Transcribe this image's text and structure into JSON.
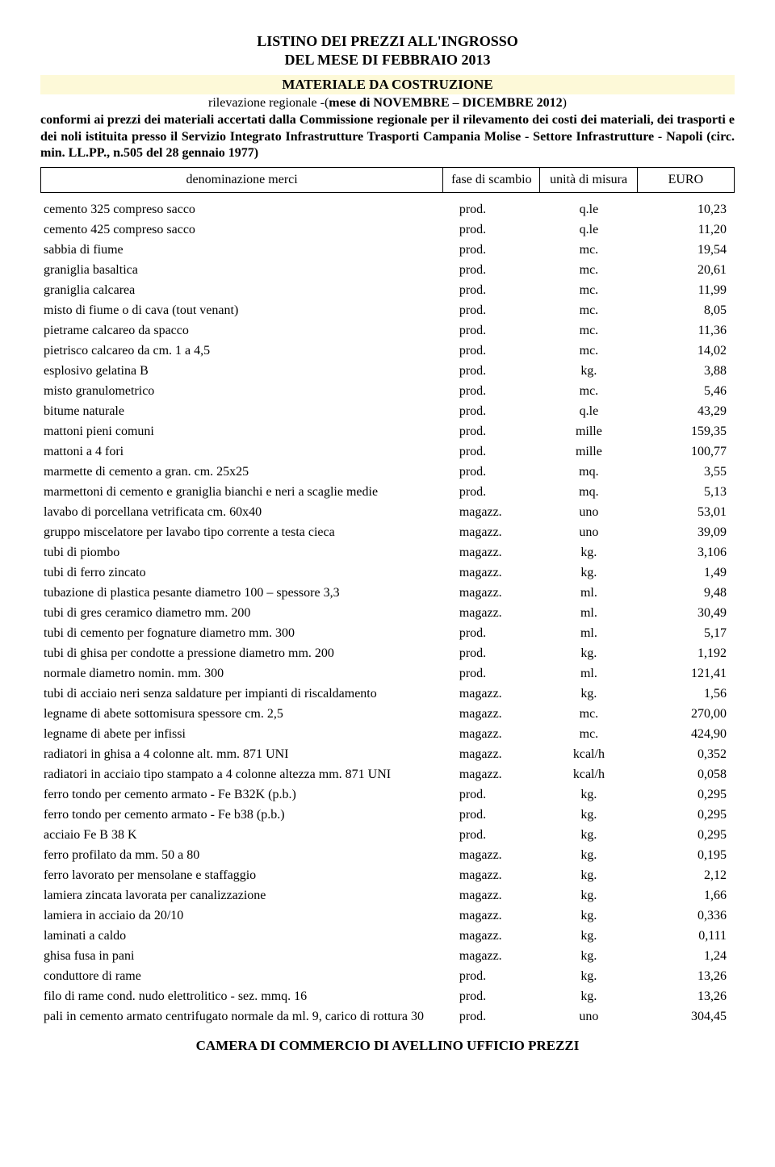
{
  "title_line1": "LISTINO DEI PREZZI ALL'INGROSSO",
  "title_line2": "DEL MESE DI FEBBRAIO 2013",
  "section_header": "MATERIALE DA COSTRUZIONE",
  "subhead_prefix": "rilevazione regionale -(",
  "subhead_bold": "mese di NOVEMBRE – DICEMBRE 2012",
  "subhead_suffix": ")",
  "intro_part1": "conformi ai prezzi dei materiali accertati dalla Commissione regionale per il rilevamento dei costi dei materiali, dei trasporti e dei noli istituita presso il Servizio Integrato Infrastrutture Trasporti Campania Molise - Settore Infrastrutture - Napoli (circ. min. LL.PP., n.505 del 28 gennaio 1977)",
  "columns": {
    "c1": "denominazione merci",
    "c2": "fase di scambio",
    "c3": "unità di misura",
    "c4": "EURO"
  },
  "rows": [
    {
      "desc": "cemento 325 compreso sacco",
      "fase": "prod.",
      "unit": "q.le",
      "price": "10,23"
    },
    {
      "desc": "cemento 425 compreso sacco",
      "fase": "prod.",
      "unit": "q.le",
      "price": "11,20"
    },
    {
      "desc": "sabbia di fiume",
      "fase": "prod.",
      "unit": "mc.",
      "price": "19,54"
    },
    {
      "desc": "graniglia basaltica",
      "fase": "prod.",
      "unit": "mc.",
      "price": "20,61"
    },
    {
      "desc": "graniglia calcarea",
      "fase": "prod.",
      "unit": "mc.",
      "price": "11,99"
    },
    {
      "desc": "misto di fiume o di cava (tout venant)",
      "fase": "prod.",
      "unit": "mc.",
      "price": "8,05"
    },
    {
      "desc": "pietrame calcareo da spacco",
      "fase": "prod.",
      "unit": "mc.",
      "price": "11,36"
    },
    {
      "desc": "pietrisco calcareo da cm. 1 a 4,5",
      "fase": "prod.",
      "unit": "mc.",
      "price": "14,02"
    },
    {
      "desc": "esplosivo gelatina B",
      "fase": "prod.",
      "unit": "kg.",
      "price": "3,88"
    },
    {
      "desc": "misto granulometrico",
      "fase": "prod.",
      "unit": "mc.",
      "price": "5,46"
    },
    {
      "desc": "bitume naturale",
      "fase": "prod.",
      "unit": "q.le",
      "price": "43,29"
    },
    {
      "desc": "mattoni pieni comuni",
      "fase": "prod.",
      "unit": "mille",
      "price": "159,35"
    },
    {
      "desc": "mattoni a 4 fori",
      "fase": "prod.",
      "unit": "mille",
      "price": "100,77"
    },
    {
      "desc": "marmette di cemento a gran. cm. 25x25",
      "fase": "prod.",
      "unit": "mq.",
      "price": "3,55"
    },
    {
      "desc": "marmettoni di cemento e graniglia bianchi e neri a scaglie medie",
      "fase": "prod.",
      "unit": "mq.",
      "price": "5,13"
    },
    {
      "desc": "lavabo di porcellana vetrificata cm. 60x40",
      "fase": "magazz.",
      "unit": "uno",
      "price": "53,01"
    },
    {
      "desc": "gruppo miscelatore per lavabo tipo corrente a testa cieca",
      "fase": "magazz.",
      "unit": "uno",
      "price": "39,09"
    },
    {
      "desc": "tubi di piombo",
      "fase": "magazz.",
      "unit": "kg.",
      "price": "3,106"
    },
    {
      "desc": "tubi di ferro zincato",
      "fase": "magazz.",
      "unit": "kg.",
      "price": "1,49"
    },
    {
      "desc": "tubazione di plastica pesante diametro 100 – spessore 3,3",
      "fase": "magazz.",
      "unit": "ml.",
      "price": "9,48"
    },
    {
      "desc": "tubi di gres ceramico diametro mm. 200",
      "fase": "magazz.",
      "unit": "ml.",
      "price": "30,49"
    },
    {
      "desc": "tubi di cemento per fognature diametro mm. 300",
      "fase": "prod.",
      "unit": "ml.",
      "price": "5,17"
    },
    {
      "desc": "tubi di ghisa per condotte a pressione diametro mm. 200",
      "fase": "prod.",
      "unit": "kg.",
      "price": "1,192"
    },
    {
      "desc": "normale diametro nomin. mm. 300",
      "fase": "prod.",
      "unit": "ml.",
      "price": "121,41"
    },
    {
      "desc": "tubi di acciaio neri senza saldature per impianti di riscaldamento",
      "fase": "magazz.",
      "unit": "kg.",
      "price": "1,56"
    },
    {
      "desc": "legname di abete sottomisura spessore cm. 2,5",
      "fase": "magazz.",
      "unit": "mc.",
      "price": "270,00"
    },
    {
      "desc": "legname di abete per infissi",
      "fase": "magazz.",
      "unit": "mc.",
      "price": "424,90"
    },
    {
      "desc": "radiatori in ghisa a 4 colonne alt. mm. 871 UNI",
      "fase": "magazz.",
      "unit": "kcal/h",
      "price": "0,352"
    },
    {
      "desc": "radiatori in acciaio tipo stampato a 4 colonne altezza mm. 871 UNI",
      "fase": "magazz.",
      "unit": "kcal/h",
      "price": "0,058"
    },
    {
      "desc": "ferro tondo per cemento armato - Fe B32K (p.b.)",
      "fase": "prod.",
      "unit": "kg.",
      "price": "0,295"
    },
    {
      "desc": "ferro tondo per cemento armato - Fe b38 (p.b.)",
      "fase": "prod.",
      "unit": "kg.",
      "price": "0,295"
    },
    {
      "desc": "acciaio Fe B 38 K",
      "fase": "prod.",
      "unit": "kg.",
      "price": "0,295"
    },
    {
      "desc": "ferro profilato da mm. 50 a 80",
      "fase": "magazz.",
      "unit": "kg.",
      "price": "0,195"
    },
    {
      "desc": "ferro lavorato per mensolane e staffaggio",
      "fase": "magazz.",
      "unit": "kg.",
      "price": "2,12"
    },
    {
      "desc": "lamiera zincata lavorata per canalizzazione",
      "fase": "magazz.",
      "unit": "kg.",
      "price": "1,66"
    },
    {
      "desc": "lamiera in acciaio da 20/10",
      "fase": "magazz.",
      "unit": "kg.",
      "price": "0,336"
    },
    {
      "desc": "laminati a caldo",
      "fase": "magazz.",
      "unit": "kg.",
      "price": "0,111"
    },
    {
      "desc": "ghisa fusa in pani",
      "fase": "magazz.",
      "unit": "kg.",
      "price": "1,24"
    },
    {
      "desc": "conduttore di rame",
      "fase": "prod.",
      "unit": "kg.",
      "price": "13,26"
    },
    {
      "desc": "filo di rame cond. nudo elettrolitico - sez. mmq. 16",
      "fase": "prod.",
      "unit": "kg.",
      "price": "13,26"
    },
    {
      "desc": "pali in cemento armato centrifugato normale da ml. 9, carico di rottura 30",
      "fase": "prod.",
      "unit": "uno",
      "price": "304,45"
    }
  ],
  "footer": "CAMERA DI COMMERCIO DI AVELLINO UFFICIO PREZZI",
  "style": {
    "header_bg": "#fdf9d8",
    "font_family": "Times New Roman",
    "title_fontsize": 18,
    "body_fontsize": 16,
    "col_widths_pct": [
      58,
      14,
      14,
      14
    ]
  }
}
